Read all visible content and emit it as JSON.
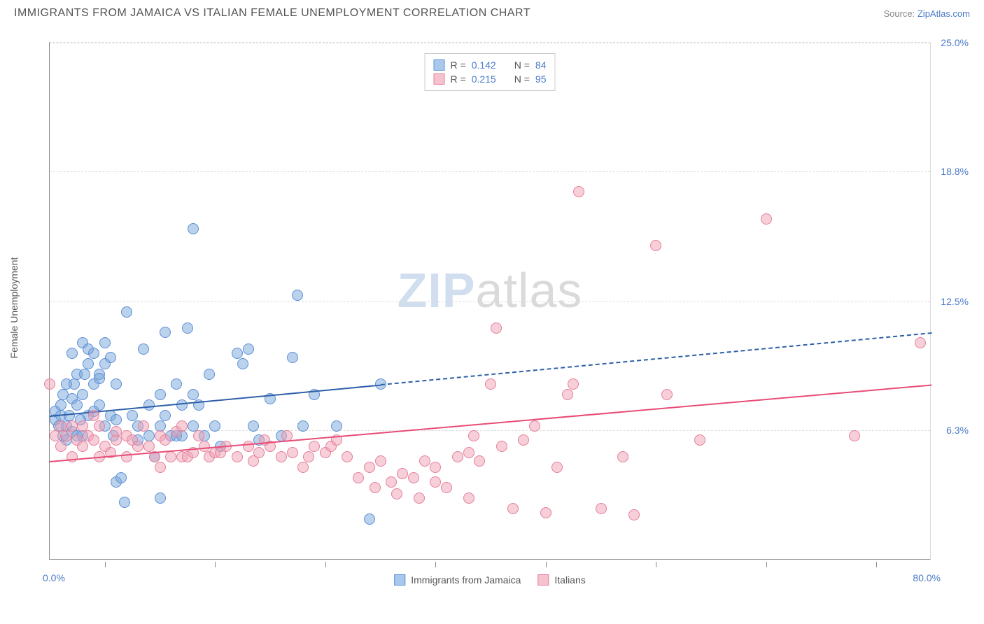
{
  "title": "IMMIGRANTS FROM JAMAICA VS ITALIAN FEMALE UNEMPLOYMENT CORRELATION CHART",
  "source_label": "Source: ",
  "source_name": "ZipAtlas.com",
  "ylabel": "Female Unemployment",
  "watermark_a": "ZIP",
  "watermark_b": "atlas",
  "chart": {
    "type": "scatter",
    "background_color": "#ffffff",
    "grid_color": "#dcdcdc",
    "xlim": [
      0,
      80
    ],
    "ylim": [
      0,
      25
    ],
    "xlabel_min": "0.0%",
    "xlabel_max": "80.0%",
    "xtick_positions": [
      5,
      15,
      25,
      35,
      45,
      55,
      65,
      75
    ],
    "yticks": [
      {
        "v": 6.3,
        "label": "6.3%"
      },
      {
        "v": 12.5,
        "label": "12.5%"
      },
      {
        "v": 18.8,
        "label": "18.8%"
      },
      {
        "v": 25.0,
        "label": "25.0%"
      }
    ],
    "legend_items": [
      {
        "label": "Immigrants from Jamaica",
        "fill": "#a8c8ec",
        "stroke": "#5b8fd6"
      },
      {
        "label": "Italians",
        "fill": "#f6c2ce",
        "stroke": "#e57f9a"
      }
    ],
    "stats_box": [
      {
        "fill": "#a8c8ec",
        "stroke": "#5b8fd6",
        "r": "0.142",
        "n": "84"
      },
      {
        "fill": "#f6c2ce",
        "stroke": "#e57f9a",
        "r": "0.215",
        "n": "95"
      }
    ],
    "series": [
      {
        "name": "jamaica",
        "fill": "rgba(120,165,220,0.5)",
        "stroke": "#5b8fd6",
        "marker_r": 8,
        "trend": {
          "x1": 0,
          "y1": 7.0,
          "x2": 30,
          "y2": 8.5,
          "color": "#2e5fa8",
          "dash_extend_x": 80,
          "dash_extend_y": 11.0
        },
        "points": [
          [
            0.5,
            6.8
          ],
          [
            0.5,
            7.2
          ],
          [
            0.8,
            6.5
          ],
          [
            1,
            7.0
          ],
          [
            1,
            7.5
          ],
          [
            1.2,
            6.0
          ],
          [
            1.2,
            8.0
          ],
          [
            1.5,
            6.5
          ],
          [
            1.5,
            8.5
          ],
          [
            1.5,
            5.8
          ],
          [
            1.8,
            7.0
          ],
          [
            2,
            6.2
          ],
          [
            2,
            7.8
          ],
          [
            2,
            10.0
          ],
          [
            2.2,
            8.5
          ],
          [
            2.5,
            6.0
          ],
          [
            2.5,
            7.5
          ],
          [
            2.5,
            9.0
          ],
          [
            2.8,
            6.8
          ],
          [
            3,
            8.0
          ],
          [
            3,
            10.5
          ],
          [
            3,
            6.0
          ],
          [
            3.2,
            9.0
          ],
          [
            3.5,
            7.0
          ],
          [
            3.5,
            9.5
          ],
          [
            3.5,
            10.2
          ],
          [
            4,
            7.2
          ],
          [
            4,
            8.5
          ],
          [
            4,
            10.0
          ],
          [
            4.5,
            7.5
          ],
          [
            4.5,
            9.0
          ],
          [
            4.5,
            8.8
          ],
          [
            5,
            6.5
          ],
          [
            5,
            10.5
          ],
          [
            5,
            9.5
          ],
          [
            5.5,
            7.0
          ],
          [
            5.5,
            9.8
          ],
          [
            5.8,
            6.0
          ],
          [
            6,
            6.8
          ],
          [
            6,
            8.5
          ],
          [
            6,
            3.8
          ],
          [
            6.5,
            4.0
          ],
          [
            6.8,
            2.8
          ],
          [
            7,
            12.0
          ],
          [
            7.5,
            7.0
          ],
          [
            8,
            5.8
          ],
          [
            8,
            6.5
          ],
          [
            8.5,
            10.2
          ],
          [
            9,
            6.0
          ],
          [
            9,
            7.5
          ],
          [
            9.5,
            5.0
          ],
          [
            10,
            8.0
          ],
          [
            10,
            6.5
          ],
          [
            10,
            3.0
          ],
          [
            10.5,
            11.0
          ],
          [
            10.5,
            7.0
          ],
          [
            11,
            6.0
          ],
          [
            11.5,
            8.5
          ],
          [
            11.5,
            6.0
          ],
          [
            12,
            7.5
          ],
          [
            12,
            6.0
          ],
          [
            12.5,
            11.2
          ],
          [
            13,
            6.5
          ],
          [
            13,
            8.0
          ],
          [
            13,
            16.0
          ],
          [
            13.5,
            7.5
          ],
          [
            14,
            6.0
          ],
          [
            14.5,
            9.0
          ],
          [
            15,
            6.5
          ],
          [
            15.5,
            5.5
          ],
          [
            17,
            10.0
          ],
          [
            17.5,
            9.5
          ],
          [
            18,
            10.2
          ],
          [
            18.5,
            6.5
          ],
          [
            19,
            5.8
          ],
          [
            20,
            7.8
          ],
          [
            21,
            6.0
          ],
          [
            22,
            9.8
          ],
          [
            22.5,
            12.8
          ],
          [
            23,
            6.5
          ],
          [
            24,
            8.0
          ],
          [
            26,
            6.5
          ],
          [
            29,
            2.0
          ],
          [
            30,
            8.5
          ]
        ]
      },
      {
        "name": "italians",
        "fill": "rgba(240,160,180,0.5)",
        "stroke": "#e57f9a",
        "marker_r": 8,
        "trend": {
          "x1": 0,
          "y1": 4.8,
          "x2": 80,
          "y2": 8.5,
          "color": "#e84c77"
        },
        "points": [
          [
            0,
            8.5
          ],
          [
            0.5,
            6.0
          ],
          [
            1,
            6.5
          ],
          [
            1,
            5.5
          ],
          [
            1.5,
            6.0
          ],
          [
            2,
            6.5
          ],
          [
            2,
            5.0
          ],
          [
            2.5,
            5.8
          ],
          [
            3,
            6.5
          ],
          [
            3,
            5.5
          ],
          [
            3.5,
            6.0
          ],
          [
            4,
            5.8
          ],
          [
            4,
            7.0
          ],
          [
            4.5,
            6.5
          ],
          [
            4.5,
            5.0
          ],
          [
            5,
            5.5
          ],
          [
            5.5,
            5.2
          ],
          [
            6,
            5.8
          ],
          [
            6,
            6.2
          ],
          [
            7,
            5.0
          ],
          [
            7,
            6.0
          ],
          [
            7.5,
            5.8
          ],
          [
            8,
            5.5
          ],
          [
            8.5,
            6.5
          ],
          [
            9,
            5.5
          ],
          [
            9.5,
            5.0
          ],
          [
            10,
            6.0
          ],
          [
            10,
            4.5
          ],
          [
            10.5,
            5.8
          ],
          [
            11,
            5.0
          ],
          [
            11.5,
            6.2
          ],
          [
            12,
            5.0
          ],
          [
            12,
            6.5
          ],
          [
            12.5,
            5.0
          ],
          [
            13,
            5.2
          ],
          [
            13.5,
            6.0
          ],
          [
            14,
            5.5
          ],
          [
            14.5,
            5.0
          ],
          [
            15,
            5.2
          ],
          [
            15.5,
            5.2
          ],
          [
            16,
            5.5
          ],
          [
            17,
            5.0
          ],
          [
            18,
            5.5
          ],
          [
            18.5,
            4.8
          ],
          [
            19,
            5.2
          ],
          [
            19.5,
            5.8
          ],
          [
            20,
            5.5
          ],
          [
            21,
            5.0
          ],
          [
            21.5,
            6.0
          ],
          [
            22,
            5.2
          ],
          [
            23,
            4.5
          ],
          [
            23.5,
            5.0
          ],
          [
            24,
            5.5
          ],
          [
            25,
            5.2
          ],
          [
            25.5,
            5.5
          ],
          [
            26,
            5.8
          ],
          [
            27,
            5.0
          ],
          [
            28,
            4.0
          ],
          [
            29,
            4.5
          ],
          [
            29.5,
            3.5
          ],
          [
            30,
            4.8
          ],
          [
            31,
            3.8
          ],
          [
            31.5,
            3.2
          ],
          [
            32,
            4.2
          ],
          [
            33,
            4.0
          ],
          [
            33.5,
            3.0
          ],
          [
            34,
            4.8
          ],
          [
            35,
            3.8
          ],
          [
            35,
            4.5
          ],
          [
            36,
            3.5
          ],
          [
            37,
            5.0
          ],
          [
            38,
            3.0
          ],
          [
            38,
            5.2
          ],
          [
            38.5,
            6.0
          ],
          [
            39,
            4.8
          ],
          [
            40,
            8.5
          ],
          [
            40.5,
            11.2
          ],
          [
            41,
            5.5
          ],
          [
            42,
            2.5
          ],
          [
            43,
            5.8
          ],
          [
            44,
            6.5
          ],
          [
            45,
            2.3
          ],
          [
            46,
            4.5
          ],
          [
            47,
            8.0
          ],
          [
            47.5,
            8.5
          ],
          [
            48,
            17.8
          ],
          [
            50,
            2.5
          ],
          [
            52,
            5.0
          ],
          [
            53,
            2.2
          ],
          [
            55,
            15.2
          ],
          [
            56,
            8.0
          ],
          [
            59,
            5.8
          ],
          [
            65,
            16.5
          ],
          [
            73,
            6.0
          ],
          [
            79,
            10.5
          ]
        ]
      }
    ]
  }
}
